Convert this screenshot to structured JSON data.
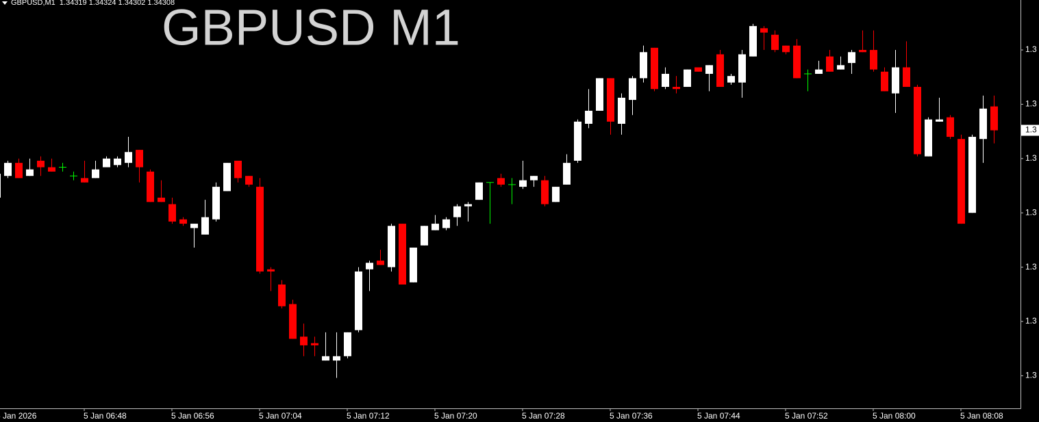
{
  "chart_data": {
    "type": "candlestick",
    "title": "GBPUSD M1",
    "header": "GBPUSD,M1  1.34319 1.34324 1.34302 1.34308",
    "categories": [
      "5 Jan 2026",
      null,
      null,
      null,
      null,
      null,
      null,
      null,
      "5 Jan 06:48",
      null,
      null,
      null,
      null,
      null,
      null,
      null,
      "5 Jan 06:56",
      null,
      null,
      null,
      null,
      null,
      null,
      null,
      "5 Jan 07:04",
      null,
      null,
      null,
      null,
      null,
      null,
      null,
      "5 Jan 07:12",
      null,
      null,
      null,
      null,
      null,
      null,
      null,
      "5 Jan 07:20",
      null,
      null,
      null,
      null,
      null,
      null,
      null,
      "5 Jan 07:28",
      null,
      null,
      null,
      null,
      null,
      null,
      null,
      "5 Jan 07:36",
      null,
      null,
      null,
      null,
      null,
      null,
      null,
      "5 Jan 07:44",
      null,
      null,
      null,
      null,
      null,
      null,
      null,
      "5 Jan 07:52",
      null,
      null,
      null,
      null,
      null,
      null,
      null,
      "5 Jan 08:00",
      null,
      null,
      null,
      null,
      null,
      null,
      null,
      "5 Jan 08:08",
      null,
      null,
      null
    ],
    "open": [
      1.34277,
      1.34287,
      1.34293,
      1.34287,
      1.34294,
      1.34291,
      1.34291,
      1.34287,
      1.34286,
      1.34286,
      1.34291,
      1.34292,
      1.34293,
      1.34299,
      1.34289,
      1.34277,
      1.34274,
      1.34267,
      1.34263,
      1.3426,
      1.34267,
      1.3428,
      1.34294,
      1.34287,
      1.34282,
      1.34244,
      1.34237,
      1.34228,
      1.34213,
      1.3421,
      1.34202,
      1.34202,
      1.34204,
      1.34216,
      1.34244,
      1.34248,
      1.34245,
      1.34265,
      1.34238,
      1.34255,
      1.34262,
      1.34263,
      1.34268,
      1.34273,
      1.34276,
      1.34284,
      1.34286,
      1.34283,
      1.34282,
      1.34285,
      1.34285,
      1.34275,
      1.34283,
      1.34294,
      1.34311,
      1.34317,
      1.34332,
      1.34311,
      1.34322,
      1.34332,
      1.34346,
      1.34328,
      1.34328,
      1.34328,
      1.34337,
      1.34334,
      1.34343,
      1.3433,
      1.3433,
      1.34342,
      1.34355,
      1.34352,
      1.34347,
      1.34347,
      1.34334,
      1.34334,
      1.34342,
      1.34336,
      1.34339,
      1.34345,
      1.34345,
      1.34335,
      1.34325,
      1.34337,
      1.34328,
      1.34296,
      1.34312,
      1.34314,
      1.34304,
      1.3427,
      1.34304,
      1.34319
    ],
    "high": [
      1.34293,
      1.34294,
      1.34295,
      1.34295,
      1.34296,
      1.34295,
      1.34293,
      1.34289,
      1.34294,
      1.34294,
      1.34296,
      1.34296,
      1.34305,
      1.34299,
      1.3429,
      1.34285,
      1.34277,
      1.34268,
      1.34265,
      1.34276,
      1.34284,
      1.34293,
      1.34294,
      1.34287,
      1.34286,
      1.34245,
      1.34239,
      1.3423,
      1.34219,
      1.34213,
      1.34215,
      1.34215,
      1.34215,
      1.34245,
      1.34248,
      1.34253,
      1.34265,
      1.34265,
      1.34254,
      1.34264,
      1.34269,
      1.34268,
      1.34274,
      1.34275,
      1.34284,
      1.34284,
      1.34288,
      1.34286,
      1.34294,
      1.34287,
      1.34287,
      1.34282,
      1.34297,
      1.34313,
      1.34327,
      1.34332,
      1.34332,
      1.34325,
      1.34333,
      1.34347,
      1.34346,
      1.34337,
      1.34333,
      1.34336,
      1.34337,
      1.34338,
      1.34345,
      1.34334,
      1.34345,
      1.34357,
      1.34356,
      1.34354,
      1.34347,
      1.3435,
      1.34336,
      1.3434,
      1.34345,
      1.34342,
      1.34345,
      1.34354,
      1.34354,
      1.34337,
      1.34345,
      1.34349,
      1.34329,
      1.34314,
      1.34323,
      1.34315,
      1.34306,
      1.34306,
      1.34324,
      1.34324
    ],
    "low": [
      1.34274,
      1.34286,
      1.34286,
      1.34287,
      1.34287,
      1.34289,
      1.34289,
      1.34285,
      1.34284,
      1.34286,
      1.34291,
      1.34291,
      1.34291,
      1.34284,
      1.34275,
      1.34275,
      1.34265,
      1.34264,
      1.34254,
      1.3426,
      1.34266,
      1.3428,
      1.34284,
      1.34282,
      1.34242,
      1.34234,
      1.34226,
      1.34212,
      1.34204,
      1.34204,
      1.34202,
      1.34194,
      1.34203,
      1.34215,
      1.34234,
      1.34246,
      1.34243,
      1.34237,
      1.34238,
      1.34255,
      1.34262,
      1.34262,
      1.34264,
      1.34266,
      1.34276,
      1.34265,
      1.34282,
      1.34274,
      1.34281,
      1.34282,
      1.34273,
      1.34275,
      1.34283,
      1.34293,
      1.34309,
      1.34317,
      1.34306,
      1.34306,
      1.34315,
      1.3433,
      1.34326,
      1.34327,
      1.34325,
      1.34328,
      1.34335,
      1.34326,
      1.34328,
      1.34329,
      1.34323,
      1.34342,
      1.34345,
      1.34344,
      1.34343,
      1.34332,
      1.34326,
      1.34334,
      1.34335,
      1.34336,
      1.34334,
      1.34344,
      1.34335,
      1.34326,
      1.34316,
      1.34328,
      1.34296,
      1.34296,
      1.34312,
      1.34304,
      1.34265,
      1.3427,
      1.34293,
      1.34302
    ],
    "close": [
      1.34288,
      1.34293,
      1.34286,
      1.3429,
      1.34291,
      1.34289,
      1.34291,
      1.34287,
      1.34284,
      1.3429,
      1.34295,
      1.34295,
      1.34298,
      1.34291,
      1.34275,
      1.34275,
      1.34266,
      1.34265,
      1.34265,
      1.34268,
      1.34282,
      1.34293,
      1.34286,
      1.34283,
      1.34243,
      1.34243,
      1.34227,
      1.34212,
      1.34209,
      1.34209,
      1.34204,
      1.34204,
      1.34215,
      1.34243,
      1.34247,
      1.34246,
      1.34264,
      1.34237,
      1.34254,
      1.34264,
      1.34265,
      1.34267,
      1.34273,
      1.34274,
      1.34284,
      1.34284,
      1.34283,
      1.34283,
      1.34285,
      1.34287,
      1.34274,
      1.34282,
      1.34293,
      1.34312,
      1.34317,
      1.34332,
      1.34312,
      1.34323,
      1.34332,
      1.34344,
      1.34327,
      1.34334,
      1.34327,
      1.34336,
      1.34335,
      1.34338,
      1.34328,
      1.34333,
      1.34343,
      1.34356,
      1.34353,
      1.34345,
      1.34344,
      1.34332,
      1.34334,
      1.34336,
      1.34335,
      1.34338,
      1.34344,
      1.34344,
      1.34336,
      1.34326,
      1.34337,
      1.34328,
      1.34297,
      1.34313,
      1.34313,
      1.34305,
      1.34265,
      1.34305,
      1.34318,
      1.34308
    ],
    "up_color": "#ffffff",
    "down_color": "#ff0000",
    "doji_color": "#00ff00",
    "ylim": [
      1.3418,
      1.34368
    ],
    "yticks": [
      {
        "value": 1.34345,
        "label": "1.3"
      },
      {
        "value": 1.3432,
        "label": "1.3"
      },
      {
        "value": 1.34295,
        "label": "1.3"
      },
      {
        "value": 1.3427,
        "label": "1.3"
      },
      {
        "value": 1.34245,
        "label": "1.3"
      },
      {
        "value": 1.3422,
        "label": "1.3"
      },
      {
        "value": 1.34195,
        "label": "1.3"
      }
    ],
    "last_price": {
      "value": 1.34308,
      "label": "1.3"
    },
    "grid": false
  }
}
